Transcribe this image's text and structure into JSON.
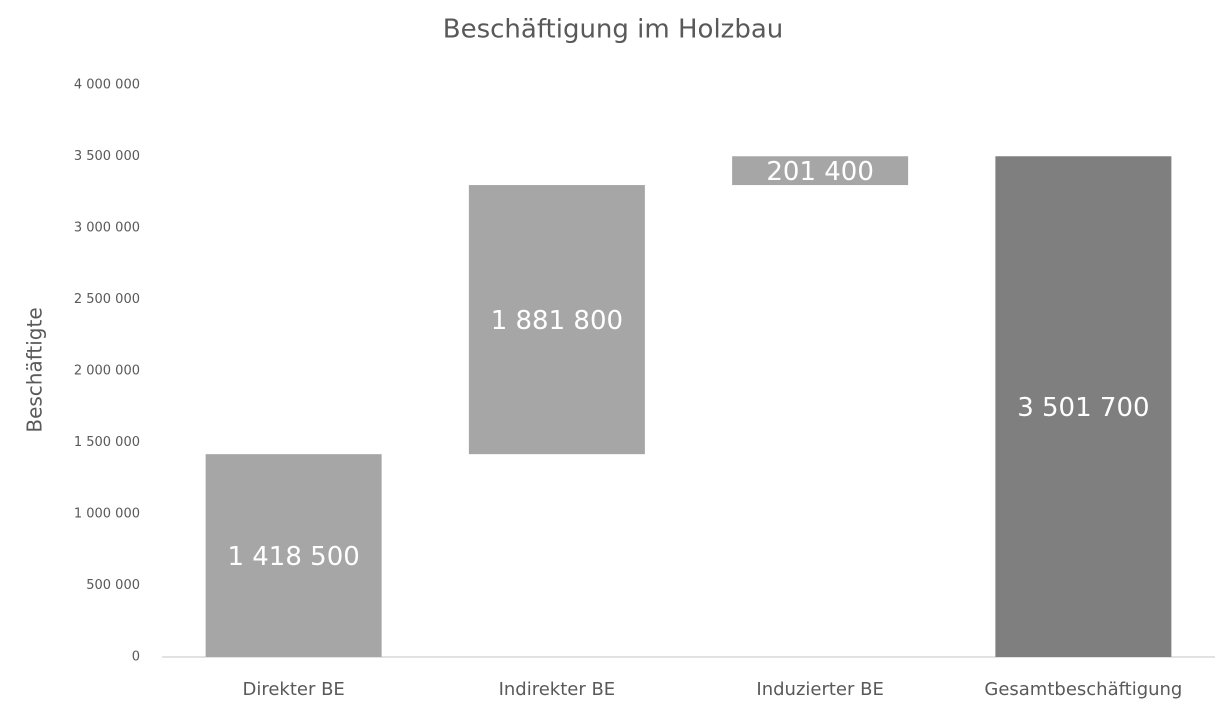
{
  "chart_data": {
    "type": "waterfall",
    "title": "Beschäftigung im Holzbau",
    "y_label": "Beschäftigte",
    "categories": [
      "Direkter BE",
      "Indirekter BE",
      "Induzierter BE",
      "Gesamtbeschäftigung"
    ],
    "values": [
      1418500,
      1881800,
      201400,
      3501700
    ],
    "value_labels": [
      "1 418 500",
      "1 881 800",
      "201 400",
      "3 501 700"
    ],
    "is_total": [
      false,
      false,
      false,
      true
    ],
    "colors": [
      "#a6a6a6",
      "#a6a6a6",
      "#a6a6a6",
      "#7f7f7f"
    ],
    "ylim": [
      0,
      4000000
    ],
    "yticks": [
      0,
      {
        "value": 500000,
        "label": "500 000"
      },
      {
        "value": 1000000,
        "label": "1 000 000"
      },
      {
        "value": 1500000,
        "label": "1 500 000"
      },
      {
        "value": 2000000,
        "label": "2 000 000"
      },
      {
        "value": 2500000,
        "label": "2 500 000"
      },
      {
        "value": 3000000,
        "label": "3 000 000"
      },
      {
        "value": 3500000,
        "label": "3 500 000"
      },
      {
        "value": 4000000,
        "label": "4 000 000"
      }
    ],
    "grid": false
  }
}
